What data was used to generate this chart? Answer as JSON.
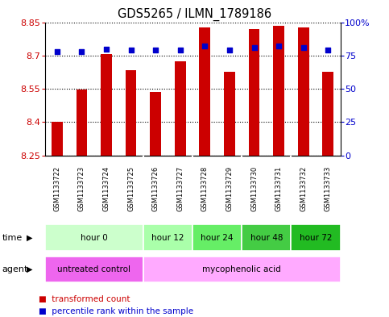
{
  "title": "GDS5265 / ILMN_1789186",
  "samples": [
    "GSM1133722",
    "GSM1133723",
    "GSM1133724",
    "GSM1133725",
    "GSM1133726",
    "GSM1133727",
    "GSM1133728",
    "GSM1133729",
    "GSM1133730",
    "GSM1133731",
    "GSM1133732",
    "GSM1133733"
  ],
  "transformed_count": [
    8.4,
    8.547,
    8.705,
    8.633,
    8.535,
    8.672,
    8.825,
    8.625,
    8.82,
    8.835,
    8.825,
    8.625
  ],
  "percentile_rank": [
    78,
    78,
    80,
    79,
    79,
    79,
    82,
    79,
    81,
    82,
    81,
    79
  ],
  "ylim": [
    8.25,
    8.85
  ],
  "yticks": [
    8.25,
    8.4,
    8.55,
    8.7,
    8.85
  ],
  "right_yticks": [
    0,
    25,
    50,
    75,
    100
  ],
  "right_ylim": [
    0,
    100
  ],
  "bar_color": "#cc0000",
  "dot_color": "#0000cc",
  "time_groups": [
    {
      "label": "hour 0",
      "start": 0,
      "end": 4,
      "color": "#ccffcc"
    },
    {
      "label": "hour 12",
      "start": 4,
      "end": 6,
      "color": "#aaffaa"
    },
    {
      "label": "hour 24",
      "start": 6,
      "end": 8,
      "color": "#66ee66"
    },
    {
      "label": "hour 48",
      "start": 8,
      "end": 10,
      "color": "#44cc44"
    },
    {
      "label": "hour 72",
      "start": 10,
      "end": 12,
      "color": "#22bb22"
    }
  ],
  "agent_groups": [
    {
      "label": "untreated control",
      "start": 0,
      "end": 4,
      "color": "#ee66ee"
    },
    {
      "label": "mycophenolic acid",
      "start": 4,
      "end": 12,
      "color": "#ffaaff"
    }
  ],
  "bg_color": "#ffffff",
  "tick_label_color_left": "#cc0000",
  "tick_label_color_right": "#0000cc",
  "bar_width": 0.45,
  "sample_bg_color": "#cccccc",
  "grid_color": "#000000",
  "n_samples": 12,
  "group_boundaries": [
    4,
    6,
    8,
    10
  ]
}
